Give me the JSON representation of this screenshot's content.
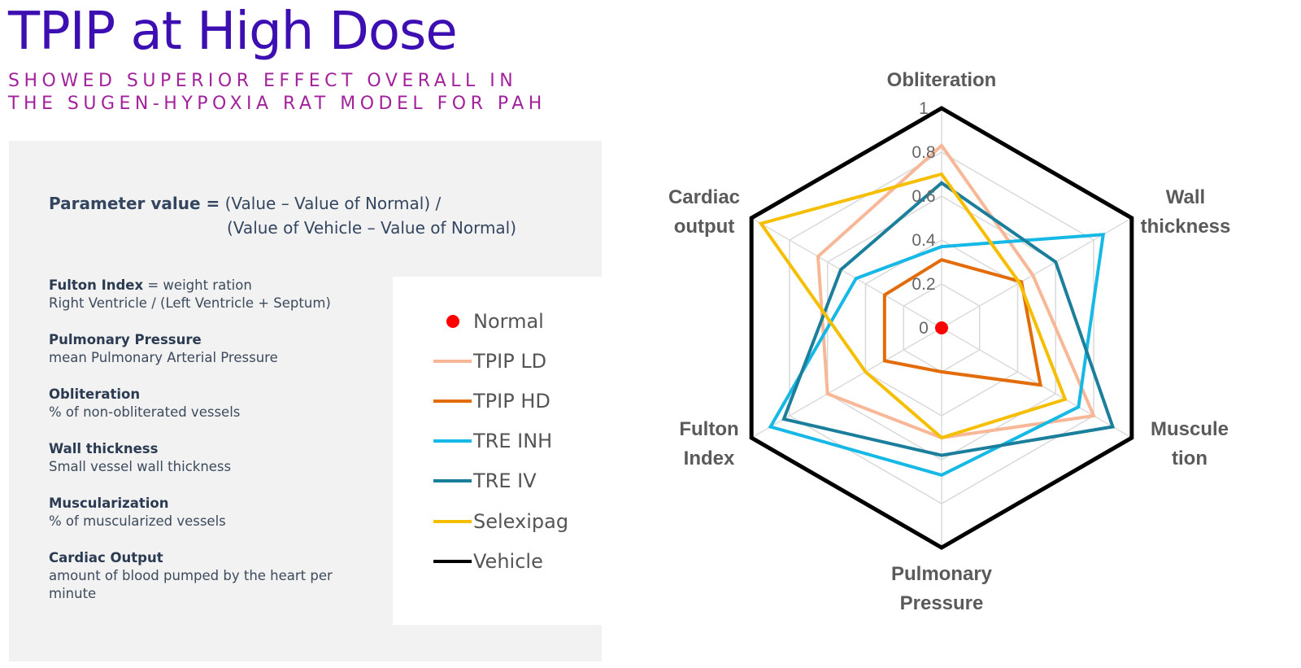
{
  "title": "TPIP at High Dose",
  "subtitle": {
    "line1": "SHOWED SUPERIOR EFFECT OVERALL IN",
    "line2": "THE SUGEN-HYPOXIA RAT MODEL FOR PAH"
  },
  "formula": {
    "lead": "Parameter value =",
    "line1_rest": "(Value – Value of Normal) /",
    "line2": "(Value of Vehicle – Value of Normal)"
  },
  "definitions": [
    {
      "term": "Fulton Index",
      "inline": "= weight ration",
      "desc": "Right Ventricle / (Left Ventricle + Septum)"
    },
    {
      "term": "Pulmonary Pressure",
      "inline": "",
      "desc": "mean Pulmonary Arterial Pressure"
    },
    {
      "term": "Obliteration",
      "inline": "",
      "desc": "% of non-obliterated vessels"
    },
    {
      "term": "Wall thickness",
      "inline": "",
      "desc": "Small vessel wall thickness"
    },
    {
      "term": "Muscularization",
      "inline": "",
      "desc": "% of muscularized vessels"
    },
    {
      "term": "Cardiac Output",
      "inline": "",
      "desc": "amount of blood pumped by the heart per minute"
    }
  ],
  "chart_data": {
    "type": "radar",
    "title": "",
    "axes": [
      {
        "label_lines": [
          "Obliteration"
        ]
      },
      {
        "label_lines": [
          "Wall",
          "thickness"
        ]
      },
      {
        "label_lines": [
          "Muscule",
          "tion"
        ]
      },
      {
        "label_lines": [
          "Pulmonary",
          "Pressure"
        ]
      },
      {
        "label_lines": [
          "Fulton",
          "Index"
        ]
      },
      {
        "label_lines": [
          "Cardiac",
          "output"
        ]
      }
    ],
    "rlim": [
      0,
      1
    ],
    "ticks": [
      0,
      0.2,
      0.4,
      0.6,
      0.8,
      1
    ],
    "tick_labels": [
      "0",
      "0.2",
      "0.4",
      "0.6",
      "0.8",
      "1"
    ],
    "grid": true,
    "series": [
      {
        "name": "Normal",
        "type": "point",
        "color": "#ff0000",
        "values": [
          0,
          0,
          0,
          0,
          0,
          0
        ]
      },
      {
        "name": "TPIP LD",
        "color": "#f8b796",
        "values": [
          0.83,
          0.48,
          0.8,
          0.5,
          0.6,
          0.65
        ]
      },
      {
        "name": "TPIP HD",
        "color": "#e36c0a",
        "values": [
          0.31,
          0.42,
          0.52,
          0.2,
          0.3,
          0.3
        ]
      },
      {
        "name": "TRE INH",
        "color": "#16b8e6",
        "values": [
          0.37,
          0.85,
          0.72,
          0.67,
          0.9,
          0.45
        ]
      },
      {
        "name": "TRE IV",
        "color": "#1b7f9b",
        "values": [
          0.66,
          0.6,
          0.9,
          0.58,
          0.83,
          0.53
        ]
      },
      {
        "name": "Selexipag",
        "color": "#f5bf00",
        "values": [
          0.7,
          0.41,
          0.65,
          0.5,
          0.4,
          0.95
        ]
      },
      {
        "name": "Vehicle",
        "color": "#000000",
        "values": [
          1,
          1,
          1,
          1,
          1,
          1
        ]
      }
    ]
  }
}
